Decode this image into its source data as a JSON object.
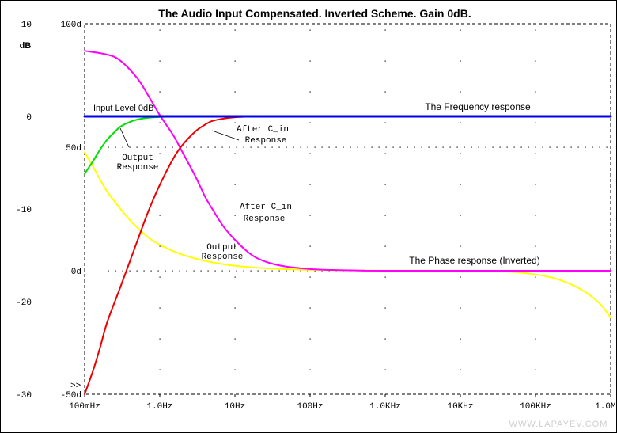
{
  "chart_data": {
    "type": "line",
    "title": "The Audio Input Compensated. Inverted Scheme. Gain 0dB.",
    "watermark": "WWW.LAPAYEV.COM",
    "x_scale": "log",
    "xlim_hz": [
      0.1,
      1000000
    ],
    "x_ticks": [
      {
        "value": 0.1,
        "label": "100mHz"
      },
      {
        "value": 1,
        "label": "1.0Hz"
      },
      {
        "value": 10,
        "label": "10Hz"
      },
      {
        "value": 100,
        "label": "100Hz"
      },
      {
        "value": 1000,
        "label": "1.0KHz"
      },
      {
        "value": 10000,
        "label": "10KHz"
      },
      {
        "value": 100000,
        "label": "100KHz"
      },
      {
        "value": 1000000,
        "label": "1.0MHz"
      }
    ],
    "y_left": {
      "unit_label": "dB",
      "ylim": [
        -30,
        10
      ],
      "ticks": [
        {
          "value": 10,
          "label": "10"
        },
        {
          "value": 0,
          "label": "0"
        },
        {
          "value": -10,
          "label": "-10"
        },
        {
          "value": -20,
          "label": "-20"
        },
        {
          "value": -30,
          "label": "-30"
        }
      ]
    },
    "y_right_phase": {
      "unit": "deg",
      "ylim": [
        -50,
        100
      ],
      "ticks": [
        {
          "value": 100,
          "label": "100d"
        },
        {
          "value": 50,
          "label": "50d"
        },
        {
          "value": 0,
          "label": "0d"
        },
        {
          "value": -50,
          "label": "-50d"
        }
      ]
    },
    "axis_marker": ">>",
    "series": [
      {
        "axis": "db",
        "color": "#0000ee",
        "points": [
          [
            0.1,
            0
          ],
          [
            1000000,
            0
          ]
        ]
      },
      {
        "axis": "db",
        "color": "#00e000",
        "points": [
          [
            0.1,
            -6.2
          ],
          [
            0.13,
            -4.8
          ],
          [
            0.16,
            -3.6
          ],
          [
            0.2,
            -2.5
          ],
          [
            0.25,
            -1.7
          ],
          [
            0.3,
            -1.1
          ],
          [
            0.4,
            -0.6
          ],
          [
            0.5,
            -0.35
          ],
          [
            0.7,
            -0.15
          ],
          [
            1,
            -0.06
          ],
          [
            1.5,
            -0.02
          ],
          [
            2,
            0
          ]
        ]
      },
      {
        "axis": "db",
        "color": "#ee0000",
        "points": [
          [
            0.1,
            -30
          ],
          [
            0.13,
            -27.4
          ],
          [
            0.16,
            -25
          ],
          [
            0.2,
            -22.2
          ],
          [
            0.3,
            -18.4
          ],
          [
            0.5,
            -13.5
          ],
          [
            0.7,
            -10.3
          ],
          [
            1,
            -7.4
          ],
          [
            1.5,
            -4.6
          ],
          [
            2,
            -3.1
          ],
          [
            3,
            -1.6
          ],
          [
            4,
            -0.9
          ],
          [
            5,
            -0.5
          ],
          [
            7,
            -0.25
          ],
          [
            10,
            -0.1
          ],
          [
            15,
            -0.03
          ],
          [
            30,
            0
          ]
        ]
      },
      {
        "axis": "phase",
        "color": "#ff00ff",
        "points": [
          [
            0.1,
            89
          ],
          [
            0.2,
            87.5
          ],
          [
            0.3,
            85
          ],
          [
            0.5,
            78
          ],
          [
            0.7,
            71
          ],
          [
            1,
            63
          ],
          [
            1.5,
            55
          ],
          [
            2,
            48
          ],
          [
            3,
            38
          ],
          [
            4,
            30
          ],
          [
            5,
            25
          ],
          [
            7,
            18
          ],
          [
            10,
            12.5
          ],
          [
            15,
            7.5
          ],
          [
            20,
            5
          ],
          [
            30,
            3
          ],
          [
            50,
            1.6
          ],
          [
            100,
            0.7
          ],
          [
            200,
            0.3
          ],
          [
            500,
            0.1
          ],
          [
            1000,
            0
          ],
          [
            1000000,
            0
          ]
        ]
      },
      {
        "axis": "phase",
        "color": "#ffff00",
        "points": [
          [
            0.1,
            48
          ],
          [
            0.13,
            42
          ],
          [
            0.16,
            37
          ],
          [
            0.2,
            32
          ],
          [
            0.3,
            25
          ],
          [
            0.4,
            20.5
          ],
          [
            0.5,
            17.5
          ],
          [
            0.7,
            13.5
          ],
          [
            1,
            10.5
          ],
          [
            1.5,
            8
          ],
          [
            2,
            6.5
          ],
          [
            3,
            4.9
          ],
          [
            5,
            3.4
          ],
          [
            10,
            2
          ],
          [
            20,
            1.2
          ],
          [
            50,
            0.6
          ],
          [
            100,
            0.35
          ],
          [
            300,
            0.15
          ],
          [
            1000,
            0.05
          ],
          [
            10000,
            0
          ],
          [
            40000,
            -0.3
          ],
          [
            100000,
            -1.5
          ],
          [
            200000,
            -3.5
          ],
          [
            400000,
            -7.5
          ],
          [
            700000,
            -13
          ],
          [
            1000000,
            -19
          ]
        ]
      }
    ],
    "annotations": [
      {
        "id": "input-level",
        "text": "Input Level 0dB",
        "font": "sans"
      },
      {
        "id": "freq-title",
        "text": "The Frequency response",
        "font": "sans"
      },
      {
        "id": "phase-title",
        "text": "The Phase response (Inverted)",
        "font": "sans"
      },
      {
        "id": "green-l1",
        "text": "Output",
        "font": "mono"
      },
      {
        "id": "green-l2",
        "text": "Response",
        "font": "mono"
      },
      {
        "id": "red-l1",
        "text": "After C_in",
        "font": "mono"
      },
      {
        "id": "red-l2",
        "text": "Response",
        "font": "mono"
      },
      {
        "id": "mag-l1",
        "text": "After C_in",
        "font": "mono"
      },
      {
        "id": "mag-l2",
        "text": "Response",
        "font": "mono"
      },
      {
        "id": "yel-l1",
        "text": "Output",
        "font": "mono"
      },
      {
        "id": "yel-l2",
        "text": "Response",
        "font": "mono"
      }
    ]
  }
}
